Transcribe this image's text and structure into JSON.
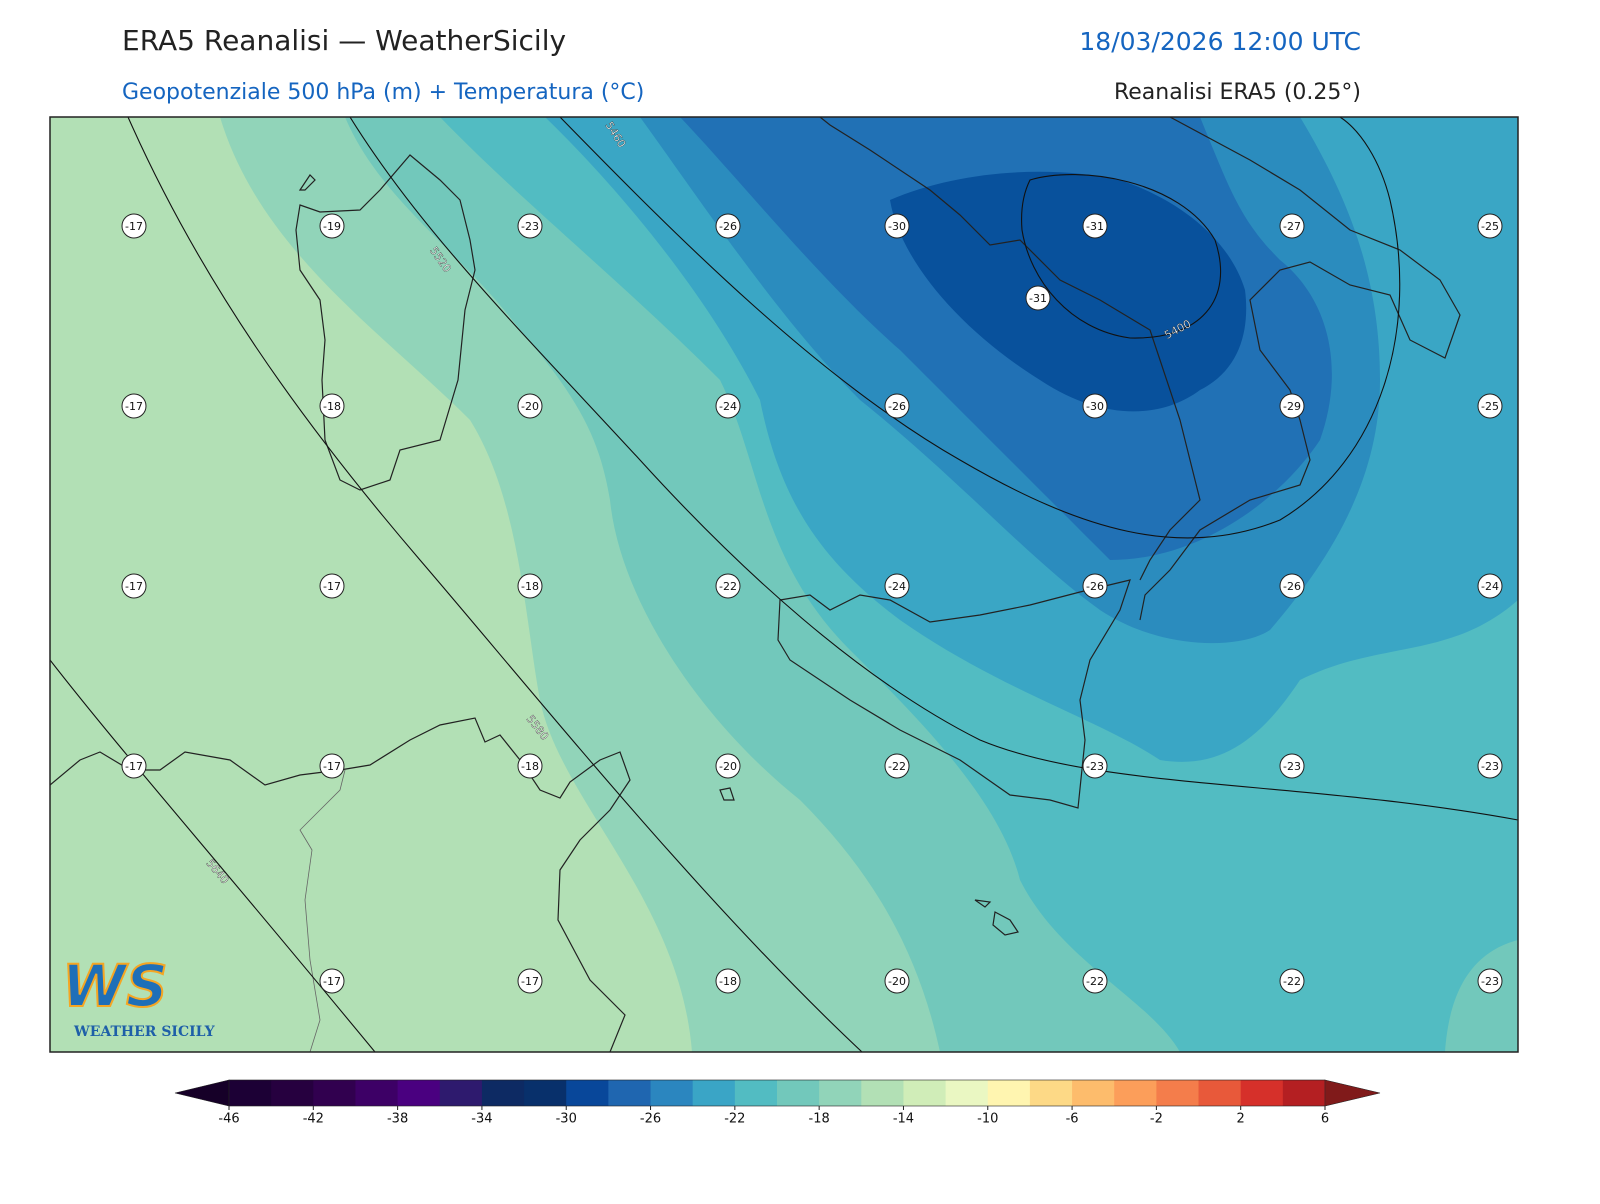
{
  "header": {
    "title": "ERA5 Reanalisi — WeatherSicily",
    "datetime": "18/03/2026 12:00 UTC",
    "subtitle": "Geopotenziale 500 hPa (m) + Temperatura (°C)",
    "source": "Reanalisi ERA5 (0.25°)"
  },
  "map": {
    "isohypse_labels": [
      5460,
      5520,
      5580,
      5640,
      5400
    ],
    "temperature_rows": [
      [
        -17,
        -19,
        -23,
        -26,
        -30,
        -31,
        -27,
        -25
      ],
      [
        -17,
        -18,
        -20,
        -24,
        -26,
        -30,
        -29,
        -25
      ],
      [
        -17,
        -17,
        -18,
        -22,
        -24,
        -26,
        -26,
        -24
      ],
      [
        -17,
        -17,
        -18,
        -20,
        -22,
        -23,
        -23,
        -23
      ],
      [
        null,
        -17,
        -17,
        -18,
        -20,
        -22,
        -22,
        -23
      ]
    ],
    "temperature_extra": [
      -31
    ]
  },
  "colorbar": {
    "levels": [
      -46,
      -44,
      -42,
      -40,
      -38,
      -36,
      -34,
      -32,
      -30,
      -28,
      -26,
      -24,
      -22,
      -20,
      -18,
      -16,
      -14,
      -12,
      -10,
      -8,
      -6,
      -4,
      -2,
      0,
      2,
      4,
      6
    ],
    "colors": [
      "#1c0035",
      "#26003f",
      "#31004f",
      "#3d0066",
      "#4a0080",
      "#2e1a6e",
      "#0d2a63",
      "#08306b",
      "#08479a",
      "#1f66b0",
      "#2b86bf",
      "#3aa5c6",
      "#52bcc2",
      "#72c8bb",
      "#91d4b9",
      "#b2e0b5",
      "#d0edb8",
      "#eaf7c2",
      "#fff5b0",
      "#fdd986",
      "#fdbc6c",
      "#fc9e5a",
      "#f47d4b",
      "#e8593a",
      "#d6302a",
      "#b41f22"
    ],
    "under_color": "#160028",
    "over_color": "#801a1a",
    "ticks": [
      -46,
      -42,
      -38,
      -34,
      -30,
      -26,
      -22,
      -18,
      -14,
      -10,
      -6,
      -2,
      2,
      6
    ]
  },
  "logo": {
    "mark": "WS",
    "name": "WEATHER SICILY"
  }
}
